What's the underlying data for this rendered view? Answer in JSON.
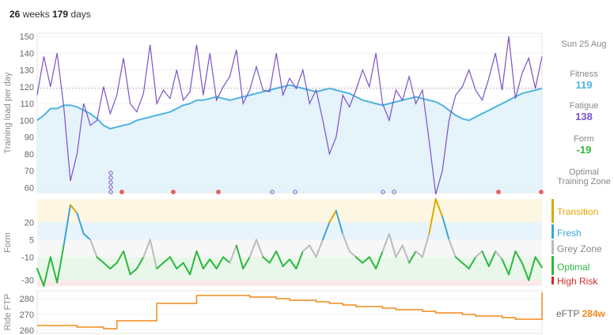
{
  "header": {
    "weeks": "26",
    "weeks_unit": "weeks",
    "days": "179",
    "days_unit": "days"
  },
  "fitness_panel": {
    "ylabel": "Training load per day",
    "yticks": [
      "150",
      "140",
      "130",
      "120",
      "110",
      "100",
      "90",
      "80",
      "70",
      "60"
    ],
    "date": "Sun 25 Aug",
    "fitness_label": "Fitness",
    "fitness_value": "119",
    "fatigue_label": "Fatigue",
    "fatigue_value": "138",
    "form_label": "Form",
    "form_value": "-19",
    "optimal_label": "Optimal Training Zone"
  },
  "form_panel": {
    "ylabel": "Form",
    "yticks": [
      "20",
      "5",
      "-10",
      "-30"
    ],
    "zones": [
      {
        "label": "Transition",
        "color": "#e0a800"
      },
      {
        "label": "Fresh",
        "color": "#3aa6d9"
      },
      {
        "label": "Grey Zone",
        "color": "#888888"
      },
      {
        "label": "Optimal",
        "color": "#2db83d"
      },
      {
        "label": "High Risk",
        "color": "#d62728"
      }
    ]
  },
  "ftp_panel": {
    "ylabel": "Ride FTP",
    "yticks": [
      "280",
      "270",
      "260"
    ],
    "label": "eFTP",
    "value": "284w"
  },
  "colors": {
    "fitness": "#4fb3e0",
    "fatigue": "#7b52c8",
    "ftp": "#f08a1c",
    "transition": "#e0a800",
    "fresh": "#3aa6d9",
    "grey": "#bbbbbb",
    "optimal": "#2db83d",
    "risk": "#d62728"
  },
  "chart_data": [
    {
      "type": "line",
      "ylabel": "Training load per day",
      "ylim": [
        55,
        150
      ],
      "series": [
        {
          "name": "Fitness",
          "values": [
            100,
            103,
            107,
            107,
            109,
            109,
            108,
            106,
            104,
            101,
            97,
            95,
            96,
            97,
            98,
            100,
            101,
            102,
            103,
            104,
            105,
            107,
            109,
            110,
            112,
            112,
            113,
            114,
            113,
            112,
            113,
            114,
            115,
            116,
            117,
            118,
            119,
            120,
            121,
            120,
            119,
            118,
            117,
            118,
            119,
            118,
            117,
            116,
            114,
            112,
            111,
            110,
            109,
            110,
            111,
            112,
            113,
            114,
            113,
            112,
            111,
            109,
            106,
            103,
            101,
            100,
            102,
            104,
            106,
            108,
            110,
            112,
            114,
            116,
            117,
            118,
            119
          ]
        },
        {
          "name": "Fatigue",
          "values": [
            115,
            138,
            120,
            140,
            108,
            64,
            80,
            110,
            97,
            100,
            120,
            104,
            115,
            137,
            110,
            105,
            116,
            145,
            110,
            118,
            113,
            130,
            112,
            117,
            145,
            115,
            140,
            112,
            120,
            126,
            142,
            110,
            118,
            132,
            118,
            117,
            140,
            115,
            125,
            119,
            130,
            110,
            118,
            100,
            80,
            90,
            115,
            108,
            118,
            130,
            120,
            140,
            110,
            100,
            118,
            112,
            126,
            110,
            118,
            88,
            56,
            70,
            100,
            115,
            120,
            130,
            118,
            112,
            125,
            140,
            118,
            150,
            113,
            128,
            137,
            119,
            138
          ]
        }
      ]
    },
    {
      "type": "line",
      "ylabel": "Form",
      "ylim": [
        -35,
        40
      ],
      "series": [
        {
          "name": "Form",
          "values": [
            -20,
            -35,
            -10,
            -32,
            0,
            35,
            28,
            10,
            5,
            -10,
            -15,
            -20,
            -15,
            -5,
            -25,
            -20,
            -10,
            5,
            -20,
            -15,
            -10,
            -20,
            -15,
            -25,
            -5,
            -20,
            -12,
            -20,
            -10,
            -15,
            0,
            -20,
            -10,
            5,
            -10,
            -15,
            -5,
            -18,
            -12,
            -20,
            -5,
            0,
            -10,
            5,
            20,
            30,
            10,
            -5,
            -10,
            -15,
            -10,
            -20,
            -5,
            10,
            -10,
            0,
            -15,
            -5,
            -10,
            10,
            40,
            25,
            5,
            -10,
            -15,
            -20,
            -10,
            -5,
            -18,
            -5,
            -12,
            -25,
            -5,
            -15,
            -30,
            -10,
            -19
          ]
        }
      ]
    },
    {
      "type": "line",
      "ylabel": "Ride FTP",
      "ylim": [
        260,
        284
      ],
      "series": [
        {
          "name": "eFTP",
          "values": [
            263,
            263,
            263,
            262,
            262,
            261,
            266,
            266,
            266,
            277,
            277,
            277,
            282,
            282,
            282,
            282,
            281,
            281,
            280,
            279,
            279,
            278,
            277,
            276,
            275,
            275,
            274,
            273,
            273,
            272,
            271,
            271,
            270,
            269,
            269,
            268,
            267,
            267,
            284
          ]
        }
      ]
    }
  ]
}
